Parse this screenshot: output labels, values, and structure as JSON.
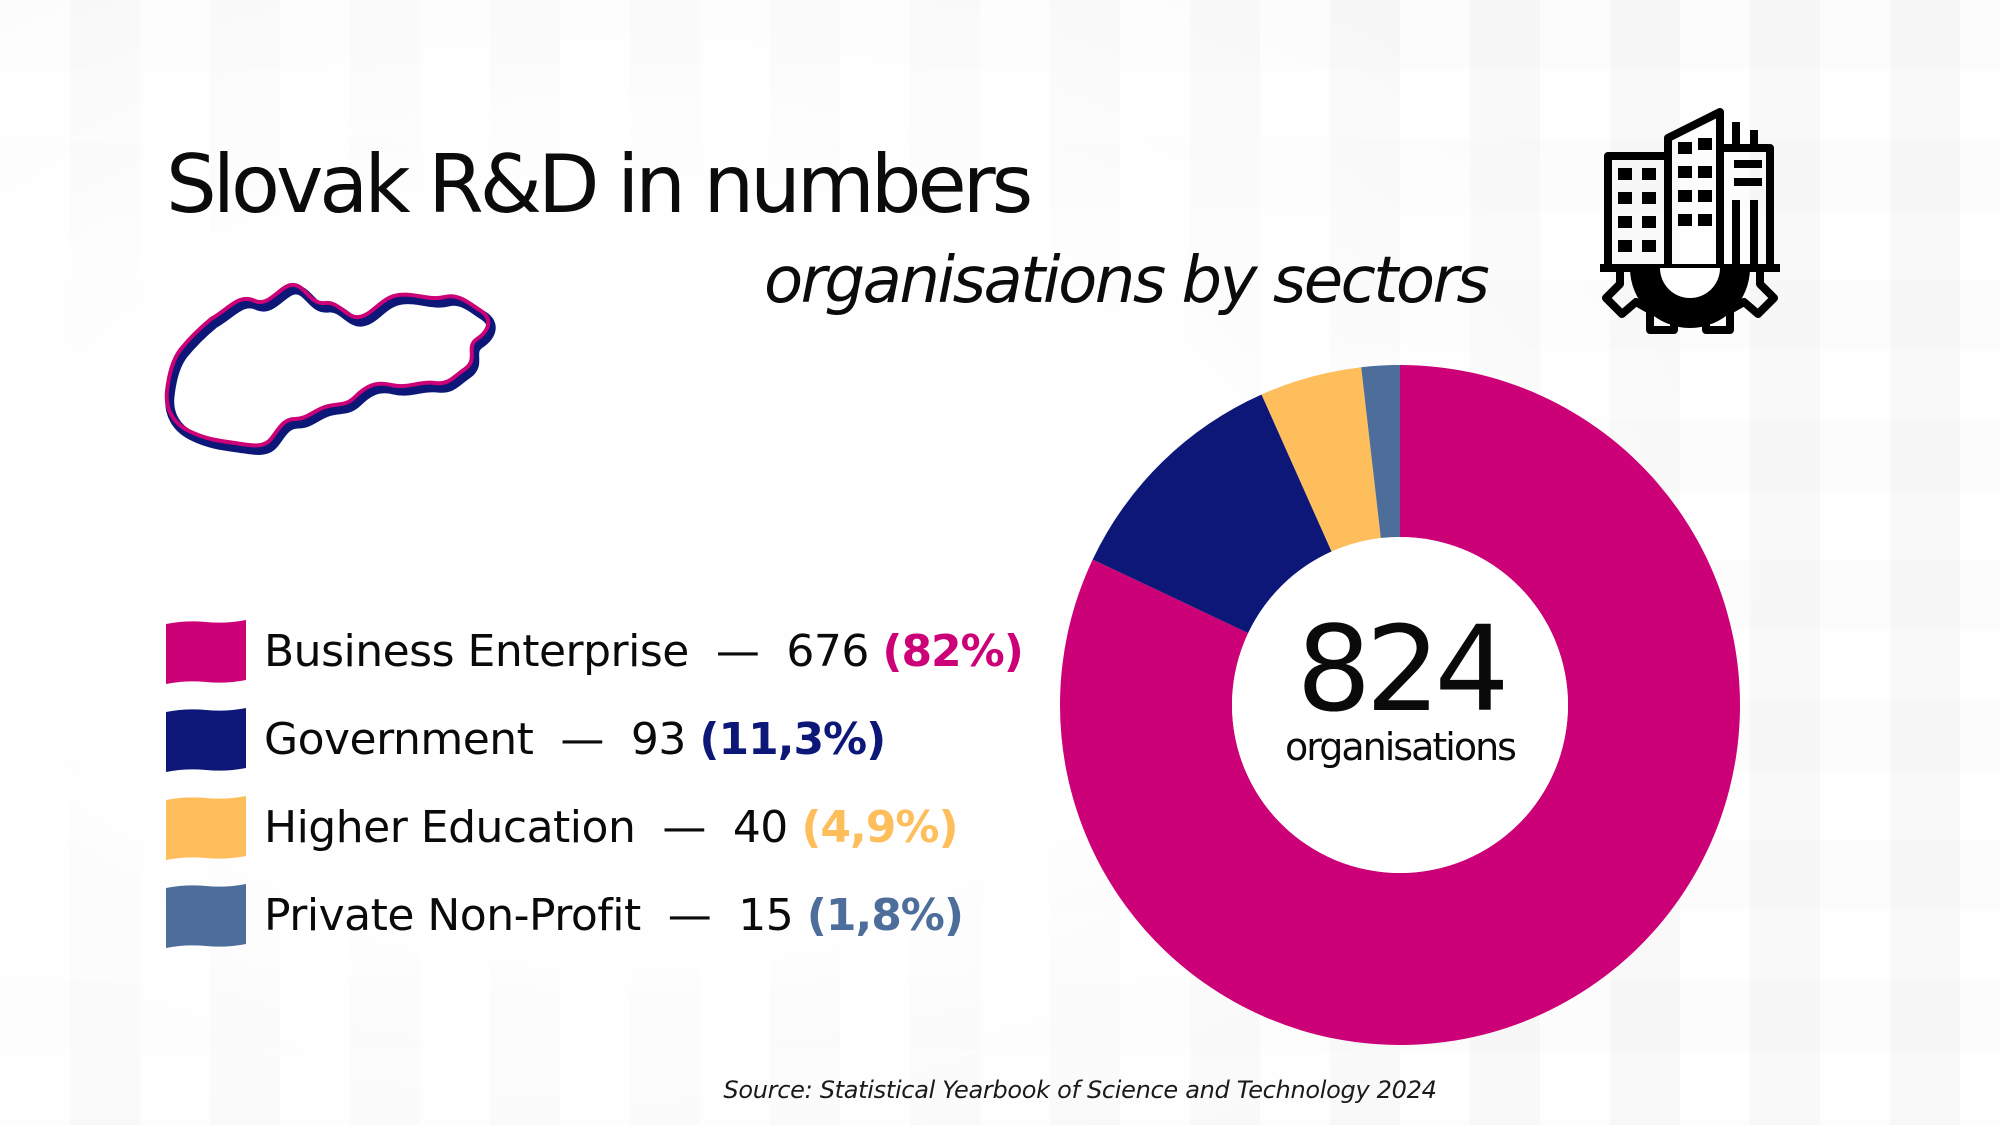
{
  "title": "Slovak R&D in numbers",
  "subtitle": "organisations by sectors",
  "source": "Source: Statistical Yearbook of Science and Technology 2024",
  "chart_data": {
    "type": "pie",
    "donut": true,
    "center_value": "824",
    "center_label": "organisations",
    "legend_position": "left",
    "categories": [
      "Business Enterprise",
      "Government",
      "Higher Education",
      "Private Non-Profit"
    ],
    "values": [
      676,
      93,
      40,
      15
    ],
    "percent_labels": [
      "(82%)",
      "(11,3%)",
      "(4,9%)",
      "(1,8%)"
    ],
    "colors": [
      "#cc0077",
      "#0d1778",
      "#ffbe5c",
      "#4d6d9a"
    ]
  },
  "icons": {
    "map": "slovakia-map-outline-icon",
    "building": "building-gear-icon"
  },
  "colors": {
    "map_outer": "#0d1778",
    "map_inner": "#cc0077"
  }
}
